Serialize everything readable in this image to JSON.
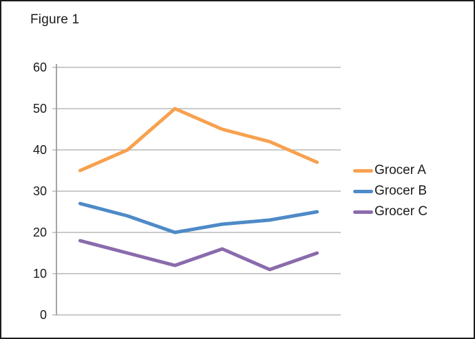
{
  "figure": {
    "title": "Figure 1"
  },
  "chart_data": {
    "type": "line",
    "title": "Figure 1",
    "n_points": 6,
    "x_tick_labels_visible": false,
    "series": [
      {
        "name": "Grocer A",
        "color": "#F7A14F",
        "values": [
          35,
          40,
          50,
          45,
          42,
          37
        ]
      },
      {
        "name": "Grocer B",
        "color": "#4E8AC7",
        "values": [
          27,
          24,
          20,
          22,
          23,
          25
        ]
      },
      {
        "name": "Grocer C",
        "color": "#8A6BAC",
        "values": [
          18,
          15,
          12,
          16,
          11,
          15
        ]
      }
    ],
    "ylim": [
      0,
      60
    ],
    "yticks": [
      60,
      50,
      40,
      30,
      20,
      10,
      0
    ],
    "grid": "horizontal-only",
    "legend_position": "right",
    "gridline_color": "#ABABAB",
    "axis_color": "#9B9B9B"
  }
}
